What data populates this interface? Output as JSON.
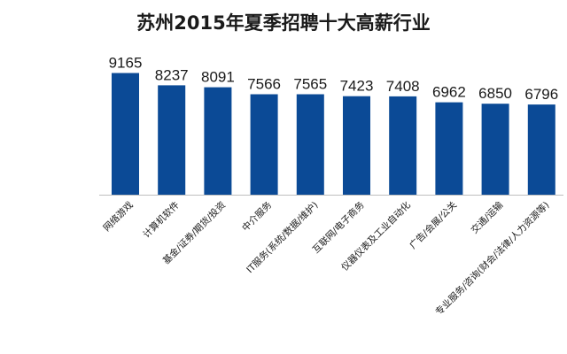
{
  "chart_data": {
    "type": "bar",
    "title": "苏州2015年夏季招聘十大高薪行业",
    "xlabel": "",
    "ylabel": "",
    "categories": [
      "网络游戏",
      "计算机软件",
      "基金/证券/期货/投资",
      "中介服务",
      "IT服务(系统/数据/维护)",
      "互联网/电子商务",
      "仪器仪表及工业自动化",
      "广告/会展/公关",
      "交通/运输",
      "专业服务/咨询(财会/法律/人力资源等)"
    ],
    "values": [
      9165,
      8237,
      8091,
      7566,
      7565,
      7423,
      7408,
      6962,
      6850,
      6796
    ],
    "ylim": [
      0,
      10000
    ],
    "grid": false,
    "legend": "none",
    "bar_color": "#0b4a96"
  }
}
